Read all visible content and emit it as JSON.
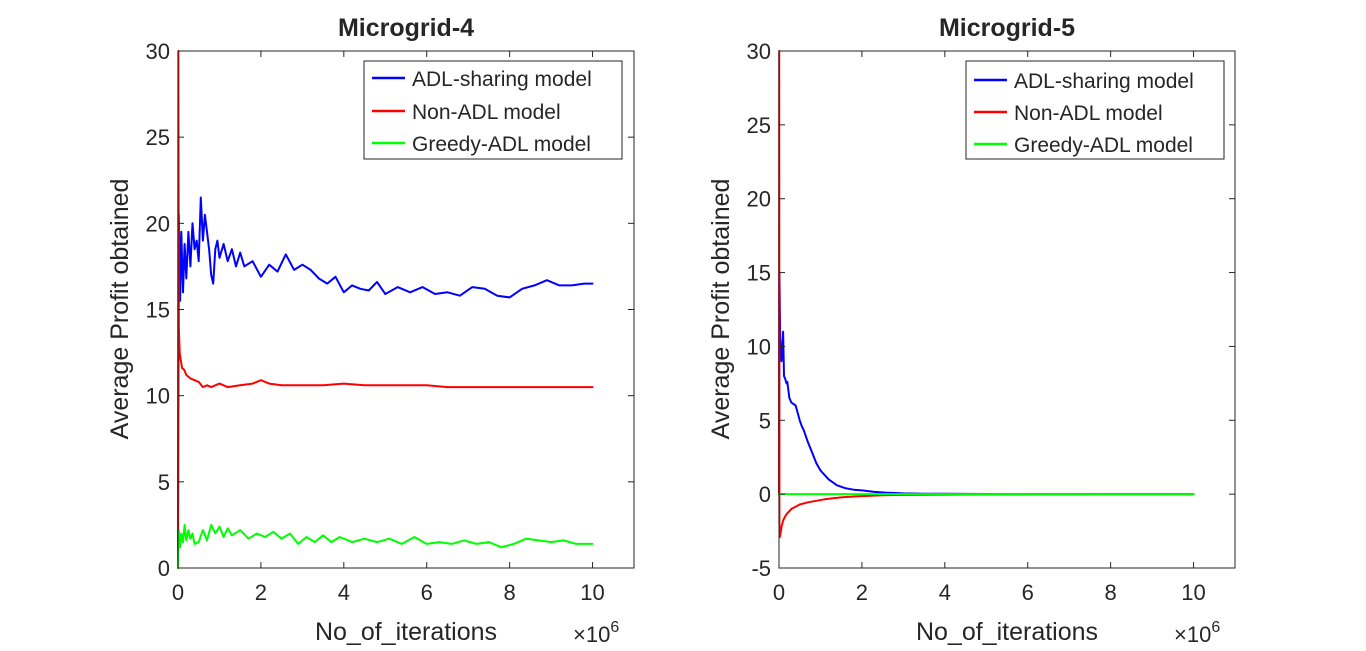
{
  "chart_data": [
    {
      "type": "line",
      "title": "Microgrid-4",
      "xlabel": "No_of_iterations",
      "ylabel": "Average Profit obtained",
      "x_exponent_label": "×10",
      "x_exponent_power": "6",
      "xlim": [
        0,
        11
      ],
      "ylim": [
        0,
        30
      ],
      "xticks": [
        0,
        2,
        4,
        6,
        8,
        10
      ],
      "xtick_labels": [
        "0",
        "2",
        "4",
        "6",
        "8",
        "10"
      ],
      "yticks": [
        0,
        5,
        10,
        15,
        20,
        25,
        30
      ],
      "ytick_labels": [
        "0",
        "5",
        "10",
        "15",
        "20",
        "25",
        "30"
      ],
      "legend_position": "top-right",
      "series": [
        {
          "name": "ADL-sharing model",
          "color": "#0000ff",
          "x": [
            0,
            0.02,
            0.05,
            0.08,
            0.12,
            0.16,
            0.2,
            0.25,
            0.3,
            0.35,
            0.4,
            0.45,
            0.5,
            0.55,
            0.6,
            0.65,
            0.7,
            0.75,
            0.8,
            0.85,
            0.9,
            0.95,
            1.0,
            1.1,
            1.2,
            1.3,
            1.4,
            1.5,
            1.6,
            1.8,
            2.0,
            2.2,
            2.4,
            2.6,
            2.8,
            3.0,
            3.2,
            3.4,
            3.6,
            3.8,
            4.0,
            4.2,
            4.4,
            4.6,
            4.8,
            5.0,
            5.3,
            5.6,
            5.9,
            6.2,
            6.5,
            6.8,
            7.1,
            7.4,
            7.7,
            8.0,
            8.3,
            8.6,
            8.9,
            9.2,
            9.5,
            9.8,
            10.0
          ],
          "y": [
            0,
            20.5,
            15.5,
            19.5,
            16.0,
            18.8,
            16.8,
            19.5,
            17.5,
            20.0,
            18.5,
            19.0,
            17.8,
            21.5,
            19.0,
            20.5,
            19.5,
            18.5,
            17.0,
            16.5,
            18.5,
            19.0,
            18.0,
            18.8,
            17.8,
            18.5,
            17.5,
            18.3,
            17.5,
            17.8,
            16.9,
            17.6,
            17.2,
            18.2,
            17.3,
            17.6,
            17.3,
            16.8,
            16.5,
            16.9,
            16.0,
            16.4,
            16.2,
            16.1,
            16.6,
            15.9,
            16.3,
            16.0,
            16.3,
            15.9,
            16.0,
            15.8,
            16.3,
            16.2,
            15.8,
            15.7,
            16.2,
            16.4,
            16.7,
            16.4,
            16.4,
            16.5,
            16.5
          ]
        },
        {
          "name": "Non-ADL model",
          "color": "#ff0000",
          "x": [
            0,
            0.01,
            0.02,
            0.04,
            0.07,
            0.1,
            0.15,
            0.2,
            0.3,
            0.4,
            0.5,
            0.6,
            0.7,
            0.8,
            1.0,
            1.2,
            1.5,
            1.8,
            2.0,
            2.2,
            2.5,
            3.0,
            3.5,
            4.0,
            4.5,
            5.0,
            5.5,
            6.0,
            6.5,
            7.0,
            7.5,
            8.0,
            8.5,
            9.0,
            9.5,
            10.0
          ],
          "y": [
            0,
            30,
            14.0,
            12.5,
            12.0,
            11.6,
            11.5,
            11.2,
            11.0,
            10.9,
            10.8,
            10.5,
            10.6,
            10.5,
            10.7,
            10.5,
            10.6,
            10.7,
            10.9,
            10.7,
            10.6,
            10.6,
            10.6,
            10.7,
            10.6,
            10.6,
            10.6,
            10.6,
            10.5,
            10.5,
            10.5,
            10.5,
            10.5,
            10.5,
            10.5,
            10.5
          ]
        },
        {
          "name": "Greedy-ADL model",
          "color": "#00ff00",
          "x": [
            0,
            0.02,
            0.05,
            0.08,
            0.12,
            0.16,
            0.2,
            0.25,
            0.3,
            0.35,
            0.4,
            0.5,
            0.6,
            0.7,
            0.8,
            0.9,
            1.0,
            1.1,
            1.2,
            1.3,
            1.5,
            1.7,
            1.9,
            2.1,
            2.3,
            2.5,
            2.7,
            2.9,
            3.1,
            3.3,
            3.5,
            3.7,
            3.9,
            4.2,
            4.5,
            4.8,
            5.1,
            5.4,
            5.7,
            6.0,
            6.3,
            6.6,
            6.9,
            7.2,
            7.5,
            7.8,
            8.1,
            8.4,
            8.7,
            9.0,
            9.3,
            9.6,
            10.0
          ],
          "y": [
            0,
            2.2,
            1.2,
            2.0,
            1.5,
            2.5,
            1.6,
            2.2,
            1.7,
            2.0,
            1.4,
            1.5,
            2.2,
            1.6,
            2.5,
            2.0,
            2.4,
            1.8,
            2.3,
            1.9,
            2.2,
            1.7,
            2.0,
            1.8,
            2.1,
            1.7,
            2.0,
            1.4,
            1.8,
            1.5,
            1.9,
            1.5,
            1.8,
            1.5,
            1.7,
            1.5,
            1.7,
            1.4,
            1.8,
            1.4,
            1.5,
            1.4,
            1.6,
            1.4,
            1.5,
            1.2,
            1.4,
            1.7,
            1.6,
            1.5,
            1.6,
            1.4,
            1.4
          ]
        }
      ]
    },
    {
      "type": "line",
      "title": "Microgrid-5",
      "xlabel": "No_of_iterations",
      "ylabel": "Average Profit obtained",
      "x_exponent_label": "×10",
      "x_exponent_power": "6",
      "xlim": [
        0,
        11
      ],
      "ylim": [
        -5,
        30
      ],
      "xticks": [
        0,
        2,
        4,
        6,
        8,
        10
      ],
      "xtick_labels": [
        "0",
        "2",
        "4",
        "6",
        "8",
        "10"
      ],
      "yticks": [
        -5,
        0,
        5,
        10,
        15,
        20,
        25,
        30
      ],
      "ytick_labels": [
        "-5",
        "0",
        "5",
        "10",
        "15",
        "20",
        "25",
        "30"
      ],
      "legend_position": "top-right",
      "series": [
        {
          "name": "ADL-sharing model",
          "color": "#0000ff",
          "x": [
            0,
            0.01,
            0.03,
            0.06,
            0.1,
            0.12,
            0.15,
            0.18,
            0.2,
            0.25,
            0.3,
            0.35,
            0.4,
            0.45,
            0.5,
            0.55,
            0.6,
            0.7,
            0.8,
            0.9,
            1.0,
            1.2,
            1.4,
            1.6,
            1.8,
            2.0,
            2.3,
            2.6,
            3.0,
            3.5,
            4.0,
            5.0,
            6.0,
            7.0,
            8.0,
            9.0,
            10.0
          ],
          "y": [
            0,
            15.0,
            10.5,
            9.0,
            11.0,
            8.0,
            7.8,
            7.5,
            7.6,
            6.5,
            6.2,
            6.1,
            6.0,
            5.5,
            5.0,
            4.6,
            4.3,
            3.5,
            2.8,
            2.1,
            1.6,
            1.0,
            0.6,
            0.4,
            0.3,
            0.25,
            0.15,
            0.1,
            0.05,
            0.03,
            0.02,
            0.01,
            0.0,
            0.0,
            0.0,
            0.0,
            0.0
          ]
        },
        {
          "name": "Non-ADL model",
          "color": "#ff0000",
          "x": [
            0,
            0.005,
            0.01,
            0.02,
            0.04,
            0.06,
            0.1,
            0.15,
            0.2,
            0.3,
            0.4,
            0.5,
            0.7,
            0.9,
            1.1,
            1.3,
            1.5,
            1.8,
            2.0,
            2.5,
            3.0,
            4.0,
            5.0,
            6.0,
            8.0,
            10.0
          ],
          "y": [
            0,
            30,
            -2.0,
            -2.9,
            -2.6,
            -2.2,
            -1.8,
            -1.5,
            -1.3,
            -1.0,
            -0.85,
            -0.7,
            -0.55,
            -0.45,
            -0.35,
            -0.28,
            -0.22,
            -0.16,
            -0.13,
            -0.08,
            -0.05,
            -0.03,
            -0.02,
            -0.01,
            0.0,
            0.0
          ]
        },
        {
          "name": "Greedy-ADL model",
          "color": "#00ff00",
          "x": [
            0,
            10.0
          ],
          "y": [
            0,
            0
          ]
        }
      ]
    }
  ]
}
